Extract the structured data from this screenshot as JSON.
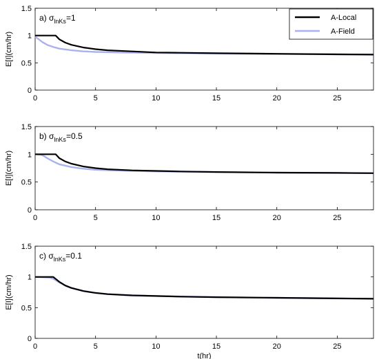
{
  "chart_data": [
    {
      "type": "line",
      "annotation": {
        "prefix": "a) ",
        "sigma": "σ",
        "subscript": "lnKs",
        "suffix": "=1"
      },
      "ylabel": "E[I](cm/hr)",
      "xlabel": "",
      "xlim": [
        0,
        28
      ],
      "ylim": [
        0,
        1.5
      ],
      "xticks": [
        0,
        5,
        10,
        15,
        20,
        25
      ],
      "yticks": [
        0,
        0.5,
        1,
        1.5
      ],
      "xtick_labels": [
        "0",
        "5",
        "10",
        "15",
        "20",
        "25"
      ],
      "ytick_labels": [
        "0",
        "0.5",
        "1",
        "1.5"
      ],
      "legend": {
        "placement": "top-right",
        "entries": [
          "A-Local",
          "A-Field"
        ]
      },
      "series": [
        {
          "name": "A-Local",
          "color": "#000000",
          "x": [
            0,
            1.7,
            2,
            2.5,
            3,
            4,
            5,
            6,
            8,
            10,
            12,
            15,
            20,
            25,
            28
          ],
          "y": [
            1,
            1,
            0.93,
            0.87,
            0.83,
            0.78,
            0.75,
            0.73,
            0.71,
            0.69,
            0.685,
            0.675,
            0.665,
            0.655,
            0.65
          ]
        },
        {
          "name": "A-Field",
          "color": "#aab2ee",
          "x": [
            0,
            0.3,
            0.6,
            1,
            1.5,
            2,
            3,
            4,
            5,
            7,
            10,
            15,
            20,
            25,
            28
          ],
          "y": [
            0.98,
            0.93,
            0.88,
            0.83,
            0.79,
            0.76,
            0.73,
            0.71,
            0.7,
            0.69,
            0.68,
            0.67,
            0.66,
            0.655,
            0.65
          ]
        }
      ]
    },
    {
      "type": "line",
      "annotation": {
        "prefix": "b) ",
        "sigma": "σ",
        "subscript": "lnKs",
        "suffix": "=0.5"
      },
      "ylabel": "E[I](cm/hr)",
      "xlabel": "",
      "xlim": [
        0,
        28
      ],
      "ylim": [
        0,
        1.5
      ],
      "xticks": [
        0,
        5,
        10,
        15,
        20,
        25
      ],
      "yticks": [
        0,
        0.5,
        1,
        1.5
      ],
      "xtick_labels": [
        "0",
        "5",
        "10",
        "15",
        "20",
        "25"
      ],
      "ytick_labels": [
        "0",
        "0.5",
        "1",
        "1.5"
      ],
      "series": [
        {
          "name": "A-Local",
          "color": "#000000",
          "x": [
            0,
            1.7,
            2,
            2.5,
            3,
            4,
            5,
            6,
            8,
            10,
            12,
            15,
            20,
            25,
            28
          ],
          "y": [
            1,
            1,
            0.93,
            0.87,
            0.83,
            0.78,
            0.75,
            0.73,
            0.71,
            0.7,
            0.69,
            0.68,
            0.67,
            0.665,
            0.66
          ]
        },
        {
          "name": "A-Field",
          "color": "#aab2ee",
          "x": [
            0,
            0.5,
            0.8,
            1,
            1.5,
            2,
            3,
            4,
            5,
            7,
            10,
            15,
            20,
            25,
            28
          ],
          "y": [
            1,
            0.99,
            0.96,
            0.93,
            0.87,
            0.82,
            0.77,
            0.74,
            0.72,
            0.705,
            0.69,
            0.68,
            0.67,
            0.665,
            0.66
          ]
        }
      ]
    },
    {
      "type": "line",
      "annotation": {
        "prefix": "c) ",
        "sigma": "σ",
        "subscript": "lnKs",
        "suffix": "=0.1"
      },
      "ylabel": "E[I](cm/hr)",
      "xlabel": "t(hr)",
      "xlim": [
        0,
        28
      ],
      "ylim": [
        0,
        1.5
      ],
      "xticks": [
        0,
        5,
        10,
        15,
        20,
        25
      ],
      "yticks": [
        0,
        0.5,
        1,
        1.5
      ],
      "xtick_labels": [
        "0",
        "5",
        "10",
        "15",
        "20",
        "25"
      ],
      "ytick_labels": [
        "0",
        "0.5",
        "1",
        "1.5"
      ],
      "series": [
        {
          "name": "A-Local",
          "color": "#000000",
          "x": [
            0,
            1.5,
            2,
            2.5,
            3,
            4,
            5,
            6,
            8,
            10,
            12,
            15,
            20,
            25,
            28
          ],
          "y": [
            1,
            1,
            0.92,
            0.86,
            0.82,
            0.77,
            0.74,
            0.72,
            0.7,
            0.69,
            0.68,
            0.67,
            0.66,
            0.65,
            0.645
          ]
        },
        {
          "name": "A-Field",
          "color": "#aab2ee",
          "x": [
            0,
            1.2,
            1.5,
            2,
            2.5,
            3,
            4,
            5,
            6,
            8,
            10,
            15,
            20,
            25,
            28
          ],
          "y": [
            1,
            0.99,
            0.97,
            0.91,
            0.86,
            0.82,
            0.77,
            0.74,
            0.72,
            0.7,
            0.69,
            0.67,
            0.66,
            0.65,
            0.645
          ]
        }
      ]
    }
  ]
}
